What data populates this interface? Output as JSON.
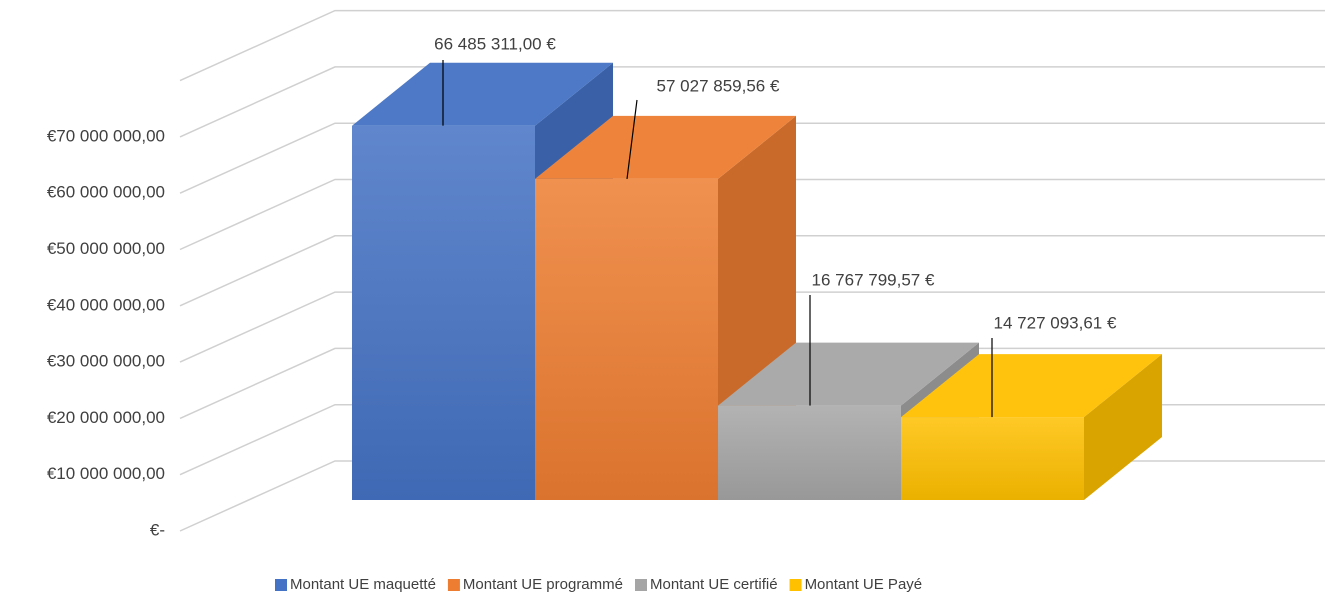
{
  "chart_data": {
    "type": "bar3d",
    "series": [
      {
        "name": "Montant UE maquetté",
        "color": "#4472c4",
        "values": [
          66485311.0
        ],
        "value_labels": [
          "66 485 311,00 €"
        ]
      },
      {
        "name": "Montant UE programmé",
        "color": "#ed7d31",
        "values": [
          57027859.56
        ],
        "value_labels": [
          "57 027 859,56 €"
        ]
      },
      {
        "name": "Montant UE certifié",
        "color": "#a5a5a5",
        "values": [
          16767799.57
        ],
        "value_labels": [
          "16 767 799,57 €"
        ]
      },
      {
        "name": "Montant UE Payé",
        "color": "#ffc000",
        "values": [
          14727093.61
        ],
        "value_labels": [
          "14 727 093,61 €"
        ]
      }
    ],
    "ylim": [
      0,
      80000000
    ],
    "yticks": [
      {
        "value": 0,
        "label": "€-"
      },
      {
        "value": 10000000,
        "label": "€10 000 000,00"
      },
      {
        "value": 20000000,
        "label": "€20 000 000,00"
      },
      {
        "value": 30000000,
        "label": "€30 000 000,00"
      },
      {
        "value": 40000000,
        "label": "€40 000 000,00"
      },
      {
        "value": 50000000,
        "label": "€50 000 000,00"
      },
      {
        "value": 60000000,
        "label": "€60 000 000,00"
      },
      {
        "value": 70000000,
        "label": "€70 000 000,00"
      }
    ],
    "grid": true,
    "legend": "bottom"
  }
}
